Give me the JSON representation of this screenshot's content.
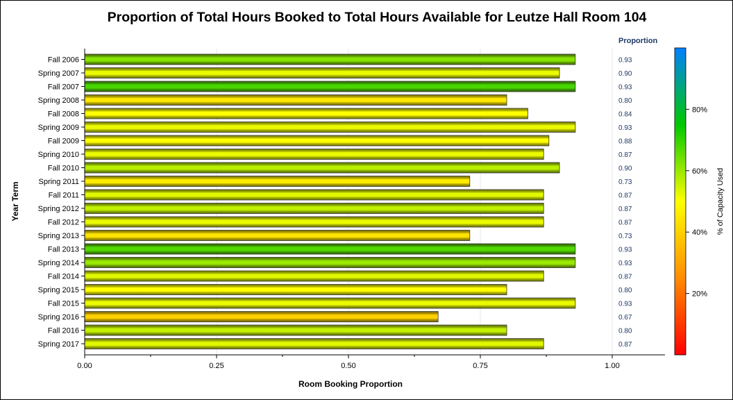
{
  "chart_data": {
    "type": "bar",
    "orientation": "horizontal",
    "title": "Proportion of Total Hours Booked to Total Hours Available for Leutze Hall Room 104",
    "xlabel": "Room Booking Proportion",
    "ylabel": "Year Term",
    "xlim": [
      0,
      1.1
    ],
    "xticks": [
      "0.00",
      "0.25",
      "0.50",
      "0.75",
      "1.00"
    ],
    "grid": "vertical",
    "categories": [
      "Fall 2006",
      "Spring 2007",
      "Fall 2007",
      "Spring 2008",
      "Fall 2008",
      "Spring 2009",
      "Fall 2009",
      "Spring 2010",
      "Fall 2010",
      "Spring 2011",
      "Fall 2011",
      "Spring 2012",
      "Fall 2012",
      "Spring 2013",
      "Fall 2013",
      "Spring 2014",
      "Fall 2014",
      "Spring 2015",
      "Fall 2015",
      "Spring 2016",
      "Fall 2016",
      "Spring 2017"
    ],
    "values": [
      0.93,
      0.9,
      0.93,
      0.8,
      0.84,
      0.93,
      0.88,
      0.87,
      0.9,
      0.73,
      0.87,
      0.87,
      0.87,
      0.73,
      0.93,
      0.93,
      0.87,
      0.8,
      0.93,
      0.67,
      0.8,
      0.87
    ],
    "value_labels": [
      "0.93",
      "0.90",
      "0.93",
      "0.80",
      "0.84",
      "0.93",
      "0.88",
      "0.87",
      "0.90",
      "0.73",
      "0.87",
      "0.87",
      "0.87",
      "0.73",
      "0.93",
      "0.93",
      "0.87",
      "0.80",
      "0.93",
      "0.67",
      "0.80",
      "0.87"
    ],
    "value_column_header": "Proportion",
    "capacity_used_pct": [
      62,
      52,
      68,
      45,
      50,
      52,
      50,
      52,
      57,
      46,
      53,
      56,
      52,
      44,
      67,
      60,
      53,
      50,
      52,
      40,
      56,
      53
    ],
    "colorbar": {
      "label": "% of Capacity Used",
      "range": [
        0,
        100
      ],
      "ticks": [
        "20%",
        "40%",
        "60%",
        "80%"
      ],
      "colors": [
        "#ff0000",
        "#ff8c00",
        "#ffff00",
        "#00c800",
        "#0080ff"
      ]
    }
  }
}
